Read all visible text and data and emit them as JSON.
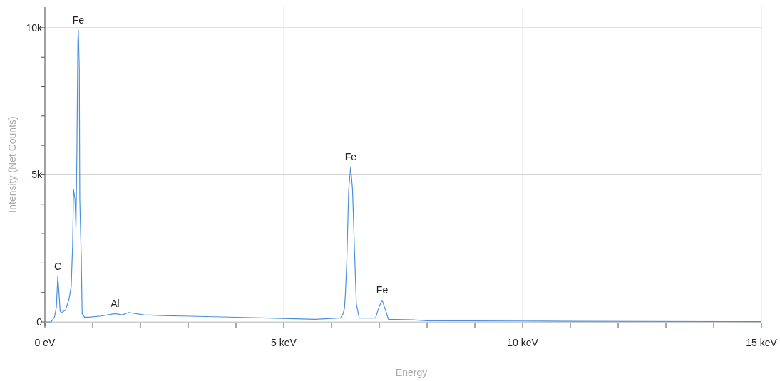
{
  "chart_data": {
    "type": "line",
    "xlabel": "Energy",
    "ylabel": "Intensity (Net Counts)",
    "xlim": [
      0,
      15
    ],
    "ylim": [
      0,
      10700
    ],
    "xticks": [
      {
        "value": 0,
        "label": "0 eV"
      },
      {
        "value": 1,
        "label": null
      },
      {
        "value": 2,
        "label": null
      },
      {
        "value": 3,
        "label": null
      },
      {
        "value": 4,
        "label": null
      },
      {
        "value": 5,
        "label": "5 keV"
      },
      {
        "value": 6,
        "label": null
      },
      {
        "value": 7,
        "label": null
      },
      {
        "value": 8,
        "label": null
      },
      {
        "value": 9,
        "label": null
      },
      {
        "value": 10,
        "label": "10 keV"
      },
      {
        "value": 11,
        "label": null
      },
      {
        "value": 12,
        "label": null
      },
      {
        "value": 13,
        "label": null
      },
      {
        "value": 14,
        "label": null
      },
      {
        "value": 15,
        "label": "15 keV"
      }
    ],
    "yticks": [
      {
        "value": 0,
        "label": "0"
      },
      {
        "value": 1000,
        "label": null
      },
      {
        "value": 2000,
        "label": null
      },
      {
        "value": 3000,
        "label": null
      },
      {
        "value": 4000,
        "label": null
      },
      {
        "value": 5000,
        "label": "5k"
      },
      {
        "value": 6000,
        "label": null
      },
      {
        "value": 7000,
        "label": null
      },
      {
        "value": 8000,
        "label": null
      },
      {
        "value": 9000,
        "label": null
      },
      {
        "value": 10000,
        "label": "10k"
      }
    ],
    "grid": true,
    "marker": "none",
    "line_style": "solid",
    "series": [
      {
        "color": "#4a90e2",
        "x": [
          0,
          0.13,
          0.2,
          0.24,
          0.27,
          0.29,
          0.32,
          0.35,
          0.43,
          0.5,
          0.55,
          0.58,
          0.6,
          0.63,
          0.65,
          0.67,
          0.69,
          0.7,
          0.72,
          0.73,
          0.76,
          0.78,
          0.83,
          0.92,
          1.17,
          1.47,
          1.62,
          1.75,
          2.07,
          2.57,
          2.88,
          3.71,
          4.68,
          5.66,
          6.14,
          6.19,
          6.24,
          6.27,
          6.29,
          6.32,
          6.36,
          6.4,
          6.44,
          6.48,
          6.52,
          6.58,
          6.92,
          7.0,
          7.06,
          7.12,
          7.19,
          7.7,
          8.0,
          10.0,
          11.08,
          15.0
        ],
        "values": [
          0,
          0,
          160,
          500,
          1560,
          1100,
          360,
          320,
          400,
          740,
          1200,
          2600,
          4500,
          4170,
          3200,
          5800,
          9550,
          9930,
          8600,
          4170,
          2270,
          280,
          160,
          160,
          200,
          280,
          240,
          320,
          240,
          210,
          200,
          170,
          130,
          90,
          130,
          130,
          270,
          450,
          940,
          2070,
          4500,
          5270,
          4500,
          2480,
          610,
          130,
          130,
          530,
          740,
          450,
          90,
          70,
          40,
          30,
          20,
          10
        ]
      }
    ],
    "annotations": [
      {
        "text": "C",
        "x": 0.27,
        "y": 1560
      },
      {
        "text": "Fe",
        "x": 0.7,
        "y": 9930
      },
      {
        "text": "Al",
        "x": 1.47,
        "y": 280
      },
      {
        "text": "Fe",
        "x": 6.4,
        "y": 5270
      },
      {
        "text": "Fe",
        "x": 7.06,
        "y": 740
      }
    ]
  }
}
